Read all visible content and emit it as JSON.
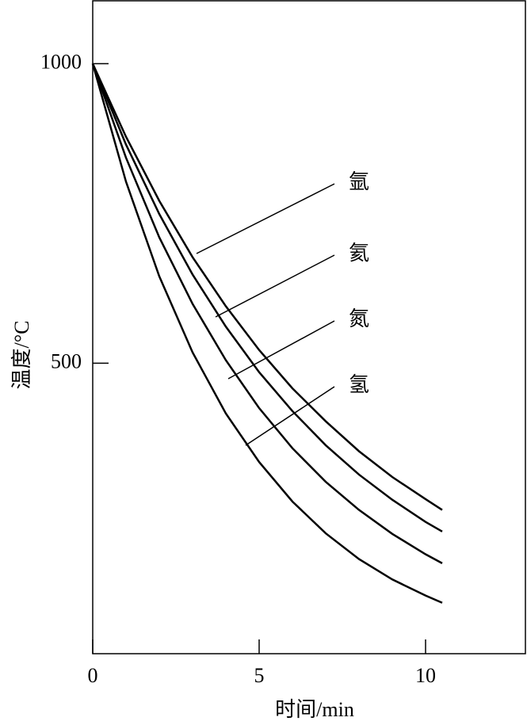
{
  "chart_data": {
    "type": "line",
    "x_label": "时间/min",
    "y_label": "温度/°C",
    "x": [
      0,
      1,
      2,
      3,
      4,
      5,
      6,
      7,
      8,
      9,
      10,
      10.5
    ],
    "series": [
      {
        "name": "氩",
        "color": "#000000",
        "values": [
          1000,
          878,
          771,
          677,
          595,
          522,
          458,
          403,
          353,
          310,
          273,
          255
        ]
      },
      {
        "name": "氦",
        "color": "#000000",
        "values": [
          1000,
          865,
          749,
          648,
          561,
          485,
          420,
          363,
          314,
          272,
          235,
          219
        ]
      },
      {
        "name": "氮",
        "color": "#000000",
        "values": [
          1000,
          843,
          710,
          599,
          505,
          425,
          358,
          302,
          255,
          215,
          181,
          166
        ]
      },
      {
        "name": "氢",
        "color": "#000000",
        "values": [
          1000,
          803,
          645,
          518,
          416,
          335,
          269,
          216,
          173,
          139,
          112,
          100
        ]
      }
    ],
    "xlim": [
      0,
      13
    ],
    "xticks": [
      0,
      5,
      10
    ],
    "ylim": [
      15,
      1105
    ],
    "yticks": [
      500,
      1000
    ]
  }
}
